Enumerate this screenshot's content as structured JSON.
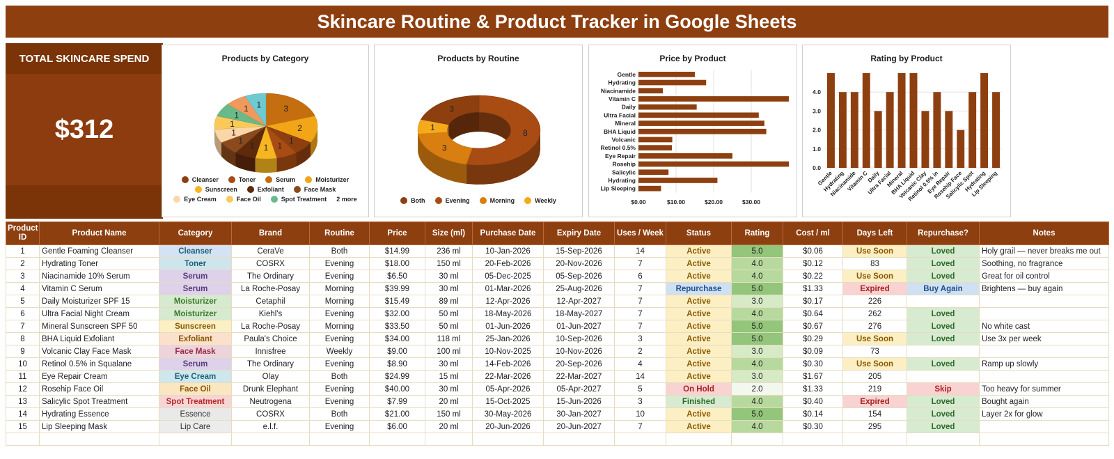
{
  "title": "Skincare Routine & Product Tracker in Google Sheets",
  "kpi": {
    "label": "TOTAL SKINCARE SPEND",
    "value": "$312"
  },
  "colors": {
    "header": "#8e3f10",
    "cat": {
      "Cleanser": "#d3e3f3",
      "Toner": "#cfe5ec",
      "Serum": "#ddd2ea",
      "Moisturizer": "#d6ead0",
      "Sunscreen": "#fbefc4",
      "Exfoliant": "#fbe1cb",
      "Face Mask": "#ecd3dc",
      "Eye Cream": "#cde7ec",
      "Face Oil": "#fbe6c2",
      "Spot Treatment": "#f8d5d5",
      "Essence": "#e9e9e9",
      "Lip Care": "#ececec"
    },
    "status": {
      "Active": "#fcefc3",
      "Repurchase": "#cfe0f3",
      "On Hold": "#f8d3d1",
      "Finished": "#d7ebd1"
    },
    "days": {
      "Use Soon": "#fbefc3",
      "Expired": "#f8d3d1"
    },
    "repurchase": {
      "Loved": "#d7ebd1",
      "Buy Again": "#cfe0f3",
      "Skip": "#f8d3d1"
    }
  },
  "charts": {
    "category": {
      "title": "Products by Category",
      "chart_data": {
        "type": "pie",
        "categories": [
          "Serum",
          "Moisturizer",
          "Cleanser",
          "Toner",
          "Sunscreen",
          "Exfoliant",
          "Face Mask",
          "Eye Cream",
          "Face Oil",
          "Spot Treatment",
          "Essence",
          "Lip Care"
        ],
        "values": [
          3,
          2,
          1,
          1,
          1,
          1,
          1,
          1,
          1,
          1,
          1,
          1
        ],
        "colors": [
          "#c56e0f",
          "#f2a516",
          "#8e3f10",
          "#a84c14",
          "#f6b61f",
          "#5e2a0b",
          "#8a4a1c",
          "#fbd7a8",
          "#fbc95a",
          "#6ab98a",
          "#ef9a5c",
          "#6ecad1"
        ],
        "title": "Products by Category"
      },
      "legend": [
        "Cleanser",
        "Toner",
        "Serum",
        "Moisturizer",
        "Sunscreen",
        "Exfoliant",
        "Face Mask",
        "Eye Cream",
        "Face Oil",
        "Spot Treatment",
        "2 more"
      ],
      "legend_colors": [
        "#8e3f10",
        "#a84c14",
        "#c56e0f",
        "#f2a516",
        "#f6b61f",
        "#5e2a0b",
        "#8a4a1c",
        "#fbd7a8",
        "#fbc95a",
        "#6ab98a",
        ""
      ]
    },
    "routine": {
      "title": "Products by Routine",
      "chart_data": {
        "type": "pie",
        "categories": [
          "Evening",
          "Morning",
          "Weekly",
          "Both"
        ],
        "values": [
          8,
          3,
          1,
          3
        ],
        "colors": [
          "#a84c14",
          "#d97e10",
          "#f5aa1c",
          "#8e3f10"
        ],
        "title": "Products by Routine"
      },
      "legend": [
        "Both",
        "Evening",
        "Morning",
        "Weekly"
      ],
      "legend_colors": [
        "#8e3f10",
        "#a84c14",
        "#d97e10",
        "#f5aa1c"
      ]
    },
    "price": {
      "title": "Price by Product",
      "chart_data": {
        "type": "bar",
        "categories": [
          "Gentle",
          "Hydrating",
          "Niacinamide",
          "Vitamin C",
          "Daily",
          "Ultra Facial",
          "Mineral",
          "BHA Liquid",
          "Volcanic",
          "Retinol 0.5%",
          "Eye Repair",
          "Rosehip",
          "Salicylic",
          "Hydrating",
          "Lip Sleeping"
        ],
        "values": [
          14.99,
          18.0,
          6.5,
          39.99,
          15.49,
          32.0,
          33.5,
          34.0,
          9.0,
          8.9,
          24.99,
          40.0,
          7.99,
          21.0,
          6.0
        ],
        "xlim": [
          0,
          40
        ],
        "ticks": [
          "$0.00",
          "$10.00",
          "$20.00",
          "$30.00"
        ],
        "title": "Price by Product"
      }
    },
    "rating": {
      "title": "Rating by Product",
      "chart_data": {
        "type": "bar",
        "categories": [
          "Gentle",
          "Hydrating",
          "Niacinamide",
          "Vitamin C",
          "Daily",
          "Ultra Facial",
          "Mineral",
          "BHA Liquid",
          "Volcanic Clay",
          "Retinol 0.5% in",
          "Eye Repair",
          "Rosehip Face",
          "Salicylic Spot",
          "Hydrating",
          "Lip Sleeping"
        ],
        "values": [
          5,
          4,
          4,
          5,
          3,
          4,
          5,
          5,
          3,
          4,
          3,
          2,
          4,
          5,
          4
        ],
        "ylim": [
          0,
          5
        ],
        "ticks": [
          "0.0",
          "1.0",
          "2.0",
          "3.0",
          "4.0"
        ],
        "title": "Rating by Product"
      }
    }
  },
  "table": {
    "headers": [
      "Product ID",
      "Product Name",
      "Category",
      "Brand",
      "Routine",
      "Price",
      "Size (ml)",
      "Purchase Date",
      "Expiry Date",
      "Uses / Week",
      "Status",
      "Rating",
      "Cost / ml",
      "Days Left",
      "Repurchase?",
      "Notes"
    ],
    "rows": [
      [
        "1",
        "Gentle Foaming Cleanser",
        "Cleanser",
        "CeraVe",
        "Both",
        "$14.99",
        "236 ml",
        "10-Jan-2026",
        "15-Sep-2026",
        "14",
        "Active",
        "5.0",
        "$0.06",
        "Use Soon",
        "Loved",
        "Holy grail — never breaks me out"
      ],
      [
        "2",
        "Hydrating Toner",
        "Toner",
        "COSRX",
        "Evening",
        "$18.00",
        "150 ml",
        "20-Feb-2026",
        "20-Nov-2026",
        "7",
        "Active",
        "4.0",
        "$0.12",
        "83",
        "Loved",
        "Soothing, no fragrance"
      ],
      [
        "3",
        "Niacinamide 10% Serum",
        "Serum",
        "The Ordinary",
        "Evening",
        "$6.50",
        "30 ml",
        "05-Dec-2025",
        "05-Sep-2026",
        "6",
        "Active",
        "4.0",
        "$0.22",
        "Use Soon",
        "Loved",
        "Great for oil control"
      ],
      [
        "4",
        "Vitamin C Serum",
        "Serum",
        "La Roche-Posay",
        "Morning",
        "$39.99",
        "30 ml",
        "01-Mar-2026",
        "25-Aug-2026",
        "7",
        "Repurchase",
        "5.0",
        "$1.33",
        "Expired",
        "Buy Again",
        "Brightens — buy again"
      ],
      [
        "5",
        "Daily Moisturizer SPF 15",
        "Moisturizer",
        "Cetaphil",
        "Morning",
        "$15.49",
        "89 ml",
        "12-Apr-2026",
        "12-Apr-2027",
        "7",
        "Active",
        "3.0",
        "$0.17",
        "226",
        "",
        ""
      ],
      [
        "6",
        "Ultra Facial Night Cream",
        "Moisturizer",
        "Kiehl's",
        "Evening",
        "$32.00",
        "50 ml",
        "18-May-2026",
        "18-May-2027",
        "7",
        "Active",
        "4.0",
        "$0.64",
        "262",
        "Loved",
        ""
      ],
      [
        "7",
        "Mineral Sunscreen SPF 50",
        "Sunscreen",
        "La Roche-Posay",
        "Morning",
        "$33.50",
        "50 ml",
        "01-Jun-2026",
        "01-Jun-2027",
        "7",
        "Active",
        "5.0",
        "$0.67",
        "276",
        "Loved",
        "No white cast"
      ],
      [
        "8",
        "BHA Liquid Exfoliant",
        "Exfoliant",
        "Paula's Choice",
        "Evening",
        "$34.00",
        "118 ml",
        "25-Jan-2026",
        "10-Sep-2026",
        "3",
        "Active",
        "5.0",
        "$0.29",
        "Use Soon",
        "Loved",
        "Use 3x per week"
      ],
      [
        "9",
        "Volcanic Clay Face Mask",
        "Face Mask",
        "Innisfree",
        "Weekly",
        "$9.00",
        "100 ml",
        "10-Nov-2025",
        "10-Nov-2026",
        "2",
        "Active",
        "3.0",
        "$0.09",
        "73",
        "",
        ""
      ],
      [
        "10",
        "Retinol 0.5% in Squalane",
        "Serum",
        "The Ordinary",
        "Evening",
        "$8.90",
        "30 ml",
        "14-Feb-2026",
        "20-Sep-2026",
        "4",
        "Active",
        "4.0",
        "$0.30",
        "Use Soon",
        "Loved",
        "Ramp up slowly"
      ],
      [
        "11",
        "Eye Repair Cream",
        "Eye Cream",
        "Olay",
        "Both",
        "$24.99",
        "15 ml",
        "22-Mar-2026",
        "22-Mar-2027",
        "14",
        "Active",
        "3.0",
        "$1.67",
        "205",
        "",
        ""
      ],
      [
        "12",
        "Rosehip Face Oil",
        "Face Oil",
        "Drunk Elephant",
        "Evening",
        "$40.00",
        "30 ml",
        "05-Apr-2026",
        "05-Apr-2027",
        "5",
        "On Hold",
        "2.0",
        "$1.33",
        "219",
        "Skip",
        "Too heavy for summer"
      ],
      [
        "13",
        "Salicylic Spot Treatment",
        "Spot Treatment",
        "Neutrogena",
        "Evening",
        "$7.99",
        "20 ml",
        "15-Oct-2025",
        "15-Jun-2026",
        "3",
        "Finished",
        "4.0",
        "$0.40",
        "Expired",
        "Loved",
        "Bought again"
      ],
      [
        "14",
        "Hydrating Essence",
        "Essence",
        "COSRX",
        "Both",
        "$21.00",
        "150 ml",
        "30-May-2026",
        "30-Jan-2027",
        "10",
        "Active",
        "5.0",
        "$0.14",
        "154",
        "Loved",
        "Layer 2x for glow"
      ],
      [
        "15",
        "Lip Sleeping Mask",
        "Lip Care",
        "e.l.f.",
        "Evening",
        "$6.00",
        "20 ml",
        "20-Jun-2026",
        "20-Jun-2027",
        "7",
        "Active",
        "4.0",
        "$0.30",
        "295",
        "Loved",
        ""
      ]
    ]
  }
}
